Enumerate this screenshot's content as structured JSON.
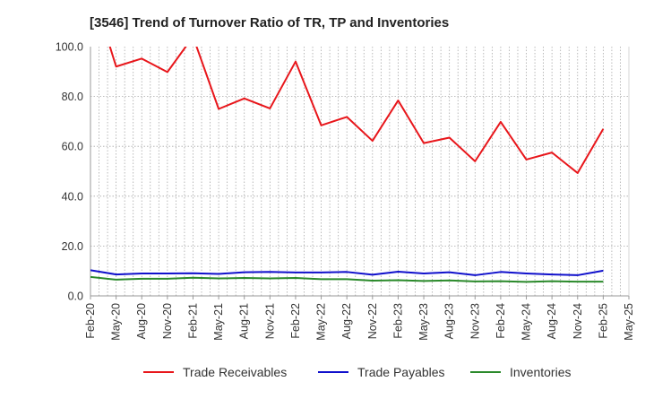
{
  "chart_data": {
    "type": "line",
    "title": "[3546]  Trend of Turnover Ratio of TR, TP and Inventories",
    "xlabel": "",
    "ylabel": "",
    "ylim": [
      0,
      100
    ],
    "y_ticks": [
      "0.0",
      "20.0",
      "40.0",
      "60.0",
      "80.0",
      "100.0"
    ],
    "x_ticks": [
      "Feb-20",
      "May-20",
      "Aug-20",
      "Nov-20",
      "Feb-21",
      "May-21",
      "Aug-21",
      "Nov-21",
      "Feb-22",
      "May-22",
      "Aug-22",
      "Nov-22",
      "Feb-23",
      "May-23",
      "Aug-23",
      "Nov-23",
      "Feb-24",
      "May-24",
      "Aug-24",
      "Nov-24",
      "Feb-25",
      "May-25"
    ],
    "x_months": [
      "2020-02",
      "2020-03",
      "2020-04",
      "2020-05",
      "2020-06",
      "2020-07",
      "2020-08",
      "2020-09",
      "2020-10",
      "2020-11",
      "2020-12",
      "2021-01",
      "2021-02",
      "2021-03",
      "2021-04",
      "2021-05",
      "2021-06",
      "2021-07",
      "2021-08",
      "2021-09",
      "2021-10",
      "2021-11",
      "2021-12",
      "2022-01",
      "2022-02",
      "2022-03",
      "2022-04",
      "2022-05",
      "2022-06",
      "2022-07",
      "2022-08",
      "2022-09",
      "2022-10",
      "2022-11",
      "2022-12",
      "2023-01",
      "2023-02",
      "2023-03",
      "2023-04",
      "2023-05",
      "2023-06",
      "2023-07",
      "2023-08",
      "2023-09",
      "2023-10",
      "2023-11",
      "2023-12",
      "2024-01",
      "2024-02",
      "2024-03",
      "2024-04",
      "2024-05",
      "2024-06",
      "2024-07",
      "2024-08",
      "2024-09",
      "2024-10",
      "2024-11",
      "2024-12",
      "2025-01",
      "2025-02",
      "2025-03",
      "2025-04",
      "2025-05"
    ],
    "grid": true,
    "legend_position": "bottom",
    "series": [
      {
        "name": "Trade Receivables",
        "color": "#e8161b",
        "x": [
          "2020-05",
          "2020-08",
          "2020-11",
          "2021-02",
          "2021-05",
          "2021-08",
          "2021-11",
          "2022-02",
          "2022-05",
          "2022-08",
          "2022-11",
          "2023-02",
          "2023-05",
          "2023-08",
          "2023-11",
          "2024-02",
          "2024-05",
          "2024-08",
          "2024-11",
          "2025-02"
        ],
        "values": [
          92.0,
          95.2,
          89.8,
          104.0,
          75.0,
          79.2,
          75.2,
          94.0,
          68.4,
          71.8,
          62.2,
          78.4,
          61.3,
          63.5,
          54.0,
          69.8,
          54.7,
          57.5,
          49.3,
          67.0
        ],
        "lead_in": {
          "x": "2020-02",
          "value": 125.0
        }
      },
      {
        "name": "Trade Payables",
        "color": "#1010cc",
        "x": [
          "2020-02",
          "2020-05",
          "2020-08",
          "2020-11",
          "2021-02",
          "2021-05",
          "2021-08",
          "2021-11",
          "2022-02",
          "2022-05",
          "2022-08",
          "2022-11",
          "2023-02",
          "2023-05",
          "2023-08",
          "2023-11",
          "2024-02",
          "2024-05",
          "2024-08",
          "2024-11",
          "2025-02"
        ],
        "values": [
          10.3,
          8.6,
          9.0,
          9.0,
          9.1,
          8.8,
          9.5,
          9.6,
          9.4,
          9.4,
          9.6,
          8.5,
          9.7,
          9.0,
          9.5,
          8.3,
          9.6,
          9.0,
          8.6,
          8.3,
          10.1
        ]
      },
      {
        "name": "Inventories",
        "color": "#2b8a2b",
        "x": [
          "2020-02",
          "2020-05",
          "2020-08",
          "2020-11",
          "2021-02",
          "2021-05",
          "2021-08",
          "2021-11",
          "2022-02",
          "2022-05",
          "2022-08",
          "2022-11",
          "2023-02",
          "2023-05",
          "2023-08",
          "2023-11",
          "2024-02",
          "2024-05",
          "2024-08",
          "2024-11",
          "2025-02"
        ],
        "values": [
          7.6,
          6.5,
          6.9,
          6.9,
          7.3,
          7.0,
          7.2,
          7.0,
          7.2,
          6.7,
          6.7,
          6.1,
          6.3,
          6.0,
          6.2,
          5.8,
          5.9,
          5.6,
          5.9,
          5.7,
          5.7
        ]
      }
    ]
  }
}
